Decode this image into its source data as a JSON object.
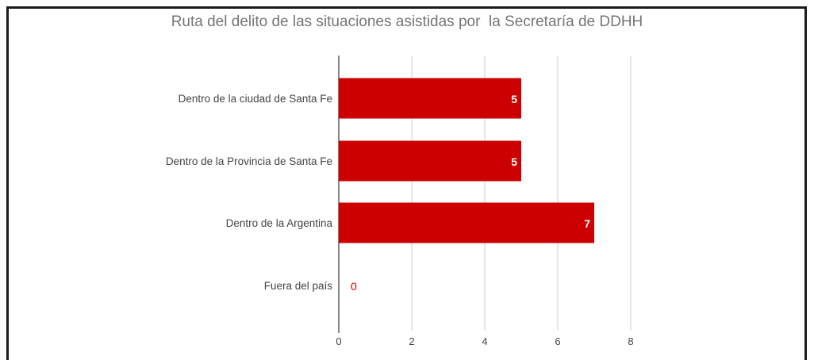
{
  "chart_data": {
    "type": "bar",
    "orientation": "horizontal",
    "title": "Ruta del delito de las situaciones asistidas por  la Secretaría de DDHH",
    "categories": [
      "Dentro de la ciudad de Santa Fe",
      "Dentro de la Provincia de Santa Fe",
      "Dentro de la Argentina",
      "Fuera del país"
    ],
    "values": [
      5,
      5,
      7,
      0
    ],
    "data_labels": [
      "5",
      "5",
      "7",
      "0"
    ],
    "xlim": [
      0,
      8
    ],
    "x_ticks": [
      "0",
      "2",
      "4",
      "6",
      "8"
    ],
    "grid": true,
    "colors": {
      "bar": "#cc0000",
      "label_inside": "#ffffff",
      "label_outside": "#cc0000",
      "grid": "#cccccc",
      "axis": "#333333",
      "text": "#444444",
      "title": "#757575"
    }
  }
}
